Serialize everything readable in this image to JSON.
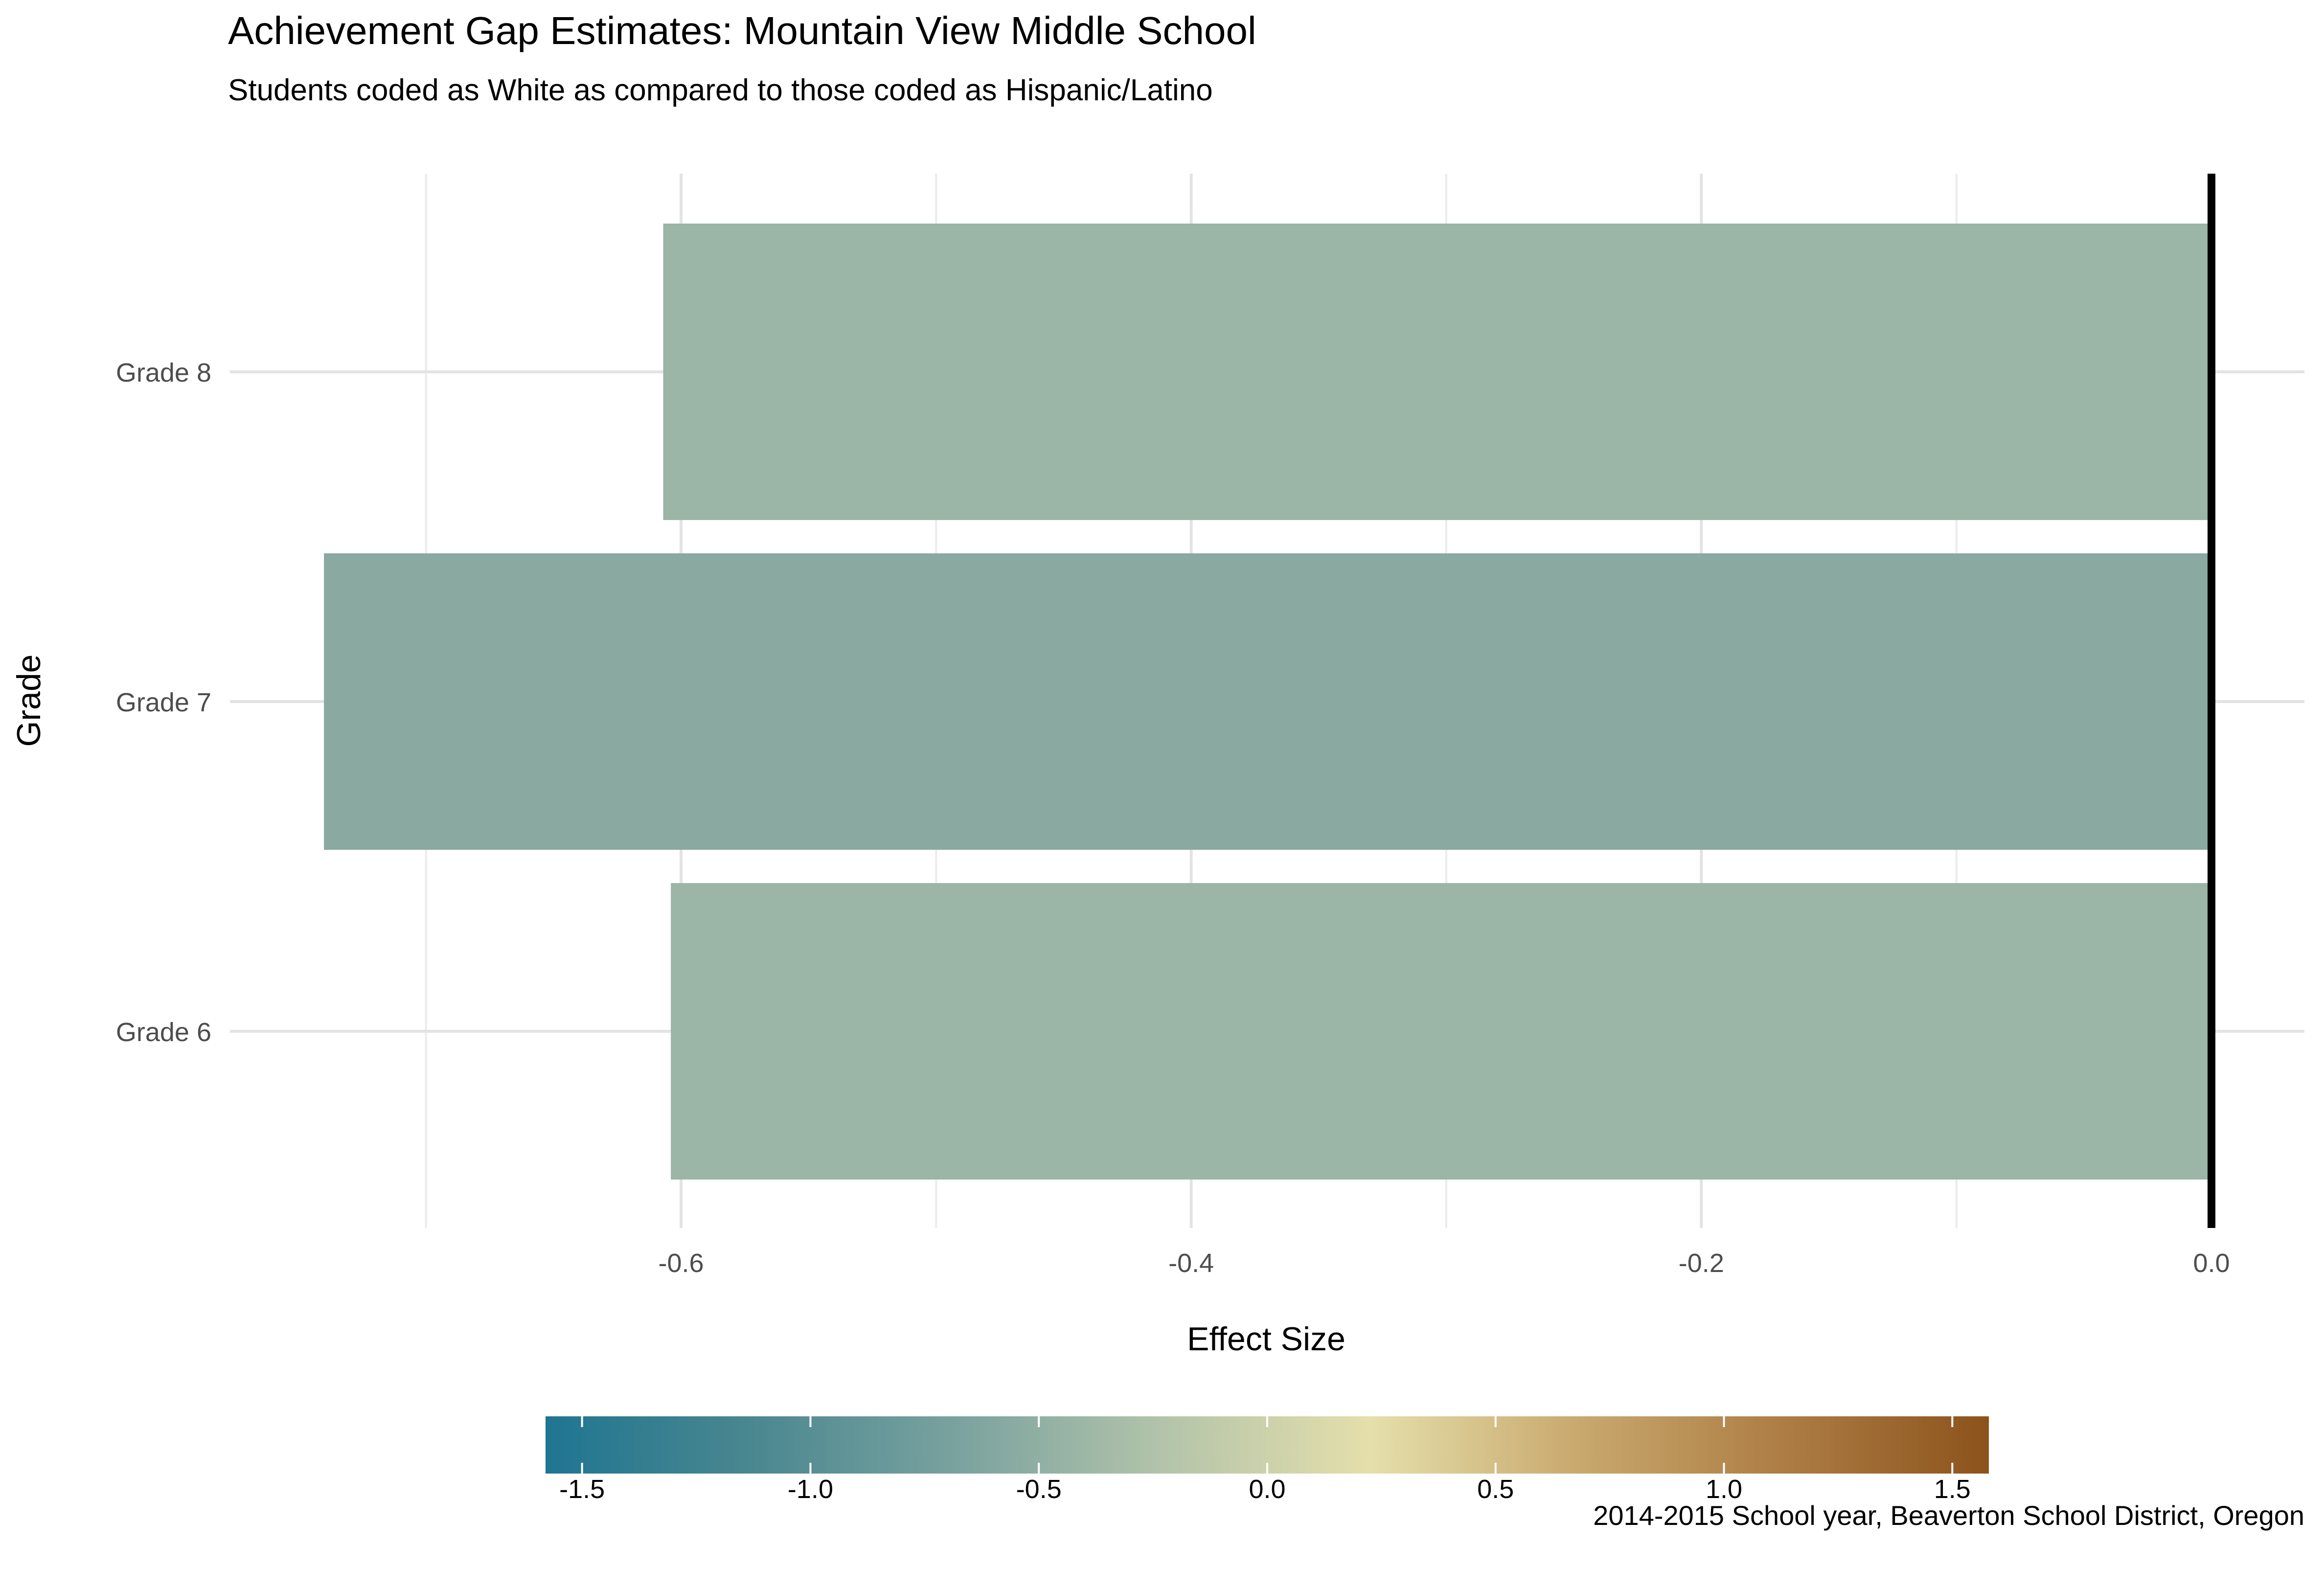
{
  "chart_data": {
    "type": "bar",
    "orientation": "horizontal",
    "title": "Achievement Gap Estimates: Mountain View Middle School",
    "subtitle": "Students coded as White as compared to those coded as Hispanic/Latino",
    "caption": "2014-2015 School year, Beaverton School District, Oregon",
    "xlabel": "Effect Size",
    "ylabel": "Grade",
    "categories": [
      "Grade 8",
      "Grade 7",
      "Grade 6"
    ],
    "values": [
      -0.607,
      -0.74,
      -0.604
    ],
    "bar_colors": [
      "#9bb5a6",
      "#89a9a1",
      "#9bb5a6"
    ],
    "xlim": [
      -0.74,
      0.0
    ],
    "x_ticks": [
      -0.6,
      -0.4,
      -0.2,
      0.0
    ],
    "x_tick_labels": [
      "-0.6",
      "-0.4",
      "-0.2",
      "0.0"
    ],
    "grid": true,
    "reference_line_x": 0.0,
    "legend": {
      "type": "colorbar",
      "placement": "bottom",
      "range": [
        -1.58,
        1.58
      ],
      "ticks": [
        -1.5,
        -1.0,
        -0.5,
        0.0,
        0.5,
        1.0,
        1.5
      ],
      "tick_labels": [
        "-1.5",
        "-1.0",
        "-0.5",
        "0.0",
        "0.5",
        "1.0",
        "1.5"
      ],
      "colors": [
        "#1f7591",
        "#4a8790",
        "#7aa29f",
        "#b3c4aa",
        "#e5dfab",
        "#c9a96e",
        "#ad7d45",
        "#8c531c"
      ]
    }
  }
}
